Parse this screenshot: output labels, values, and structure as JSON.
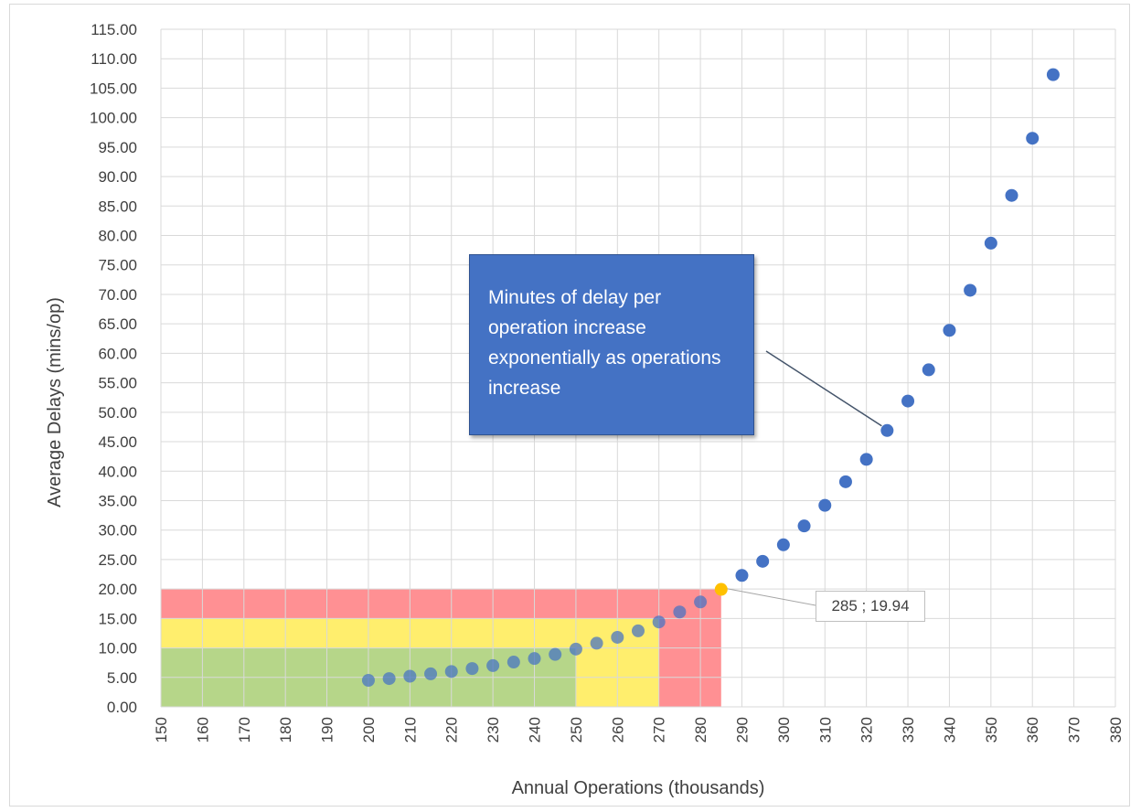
{
  "chart_data": {
    "type": "scatter",
    "title": "",
    "xlabel": "Annual Operations (thousands)",
    "ylabel": "Average Delays (mins/op)",
    "xlim": [
      150,
      380
    ],
    "ylim": [
      0,
      115
    ],
    "x_ticks": [
      "150",
      "160",
      "170",
      "180",
      "190",
      "200",
      "210",
      "220",
      "230",
      "240",
      "250",
      "260",
      "270",
      "280",
      "290",
      "300",
      "310",
      "320",
      "330",
      "340",
      "350",
      "360",
      "370",
      "380"
    ],
    "y_ticks": [
      "0.00",
      "5.00",
      "10.00",
      "15.00",
      "20.00",
      "25.00",
      "30.00",
      "35.00",
      "40.00",
      "45.00",
      "50.00",
      "55.00",
      "60.00",
      "65.00",
      "70.00",
      "75.00",
      "80.00",
      "85.00",
      "90.00",
      "95.00",
      "100.00",
      "105.00",
      "110.00",
      "115.00"
    ],
    "grid": true,
    "series": [
      {
        "color": "#4472c4",
        "highlight_color": "#ffc000",
        "points": [
          [
            200,
            4.5
          ],
          [
            205,
            4.8
          ],
          [
            210,
            5.2
          ],
          [
            215,
            5.6
          ],
          [
            220,
            6.0
          ],
          [
            225,
            6.5
          ],
          [
            230,
            7.0
          ],
          [
            235,
            7.6
          ],
          [
            240,
            8.2
          ],
          [
            245,
            8.9
          ],
          [
            250,
            9.8
          ],
          [
            255,
            10.8
          ],
          [
            260,
            11.8
          ],
          [
            265,
            12.9
          ],
          [
            270,
            14.4
          ],
          [
            275,
            16.1
          ],
          [
            280,
            17.8
          ],
          [
            285,
            19.94
          ],
          [
            290,
            22.3
          ],
          [
            295,
            24.7
          ],
          [
            300,
            27.5
          ],
          [
            305,
            30.7
          ],
          [
            310,
            34.2
          ],
          [
            315,
            38.2
          ],
          [
            320,
            42.0
          ],
          [
            325,
            46.9
          ],
          [
            330,
            51.9
          ],
          [
            335,
            57.2
          ],
          [
            340,
            63.9
          ],
          [
            345,
            70.7
          ],
          [
            350,
            78.7
          ],
          [
            355,
            86.8
          ],
          [
            360,
            96.5
          ],
          [
            365,
            107.3
          ]
        ]
      }
    ],
    "zones": [
      {
        "name": "green",
        "x": [
          150,
          250
        ],
        "y": [
          0,
          10
        ],
        "color": "#a9d18e"
      },
      {
        "name": "yellow",
        "x": [
          150,
          270
        ],
        "y": [
          0,
          15
        ],
        "color": "#ffff66"
      },
      {
        "name": "red",
        "x": [
          150,
          285
        ],
        "y": [
          0,
          20
        ],
        "color": "#ff7c80"
      }
    ],
    "highlighted_point": [
      285,
      19.94
    ],
    "data_label": "285 ; 19.94",
    "annotation": {
      "text": "Minutes of delay per operation increase exponentially as operations increase",
      "points_to": [
        325,
        46.9
      ]
    }
  }
}
